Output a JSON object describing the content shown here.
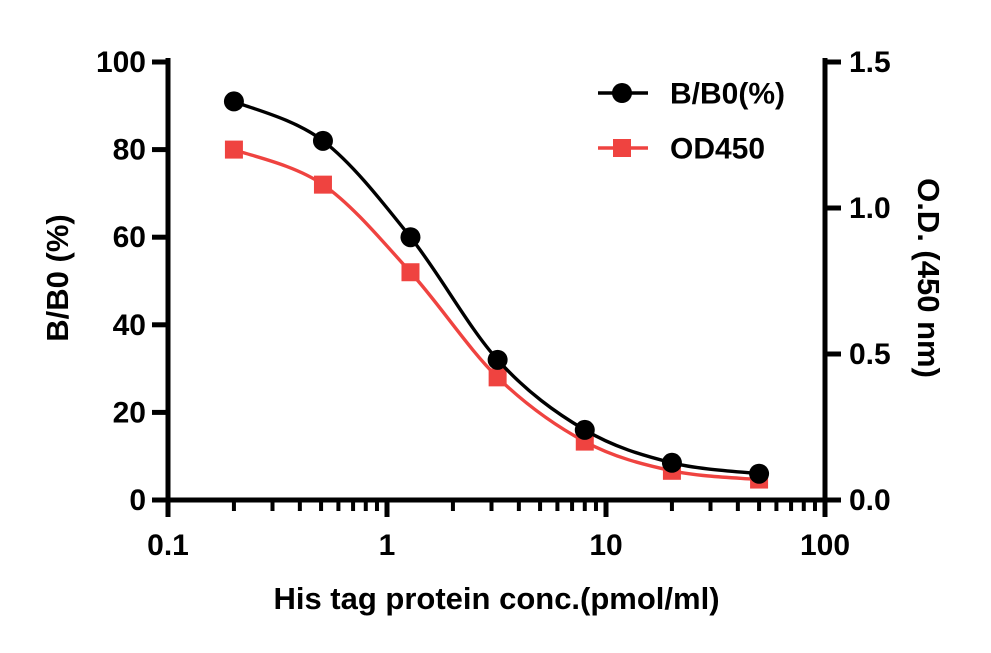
{
  "figure": {
    "description": "Competitive ELISA standard curve, dual y-axis line chart"
  },
  "chart_data": {
    "type": "line",
    "x_scale": "log",
    "x": [
      0.2,
      0.51,
      1.28,
      3.2,
      8,
      20,
      50
    ],
    "x_range": [
      0.1,
      100
    ],
    "x_ticks": [
      "0.1",
      "1",
      "10",
      "100"
    ],
    "xlabel": "His tag protein conc.(pmol/ml)",
    "left_axis": {
      "label": "B/B0 (%)",
      "range": [
        0,
        100
      ],
      "ticks": [
        "0",
        "20",
        "40",
        "60",
        "80",
        "100"
      ]
    },
    "right_axis": {
      "label": "O.D. (450 nm)",
      "range": [
        0,
        1.5
      ],
      "ticks": [
        "0.0",
        "0.5",
        "1.0",
        "1.5"
      ]
    },
    "series": [
      {
        "key": "bb0",
        "name": "B/B0(%)",
        "axis": "left",
        "marker": "circle",
        "color": "#000000",
        "values": [
          91,
          82,
          60,
          32,
          16,
          8.5,
          6
        ]
      },
      {
        "key": "od450",
        "name": "OD450",
        "axis": "right",
        "marker": "square",
        "color": "#EF4340",
        "values": [
          1.2,
          1.08,
          0.78,
          0.42,
          0.2,
          0.1,
          0.07
        ]
      }
    ],
    "legend_position": "top-right",
    "grid": false,
    "background_color": "#FFFFFF",
    "axis_color": "#000000"
  }
}
